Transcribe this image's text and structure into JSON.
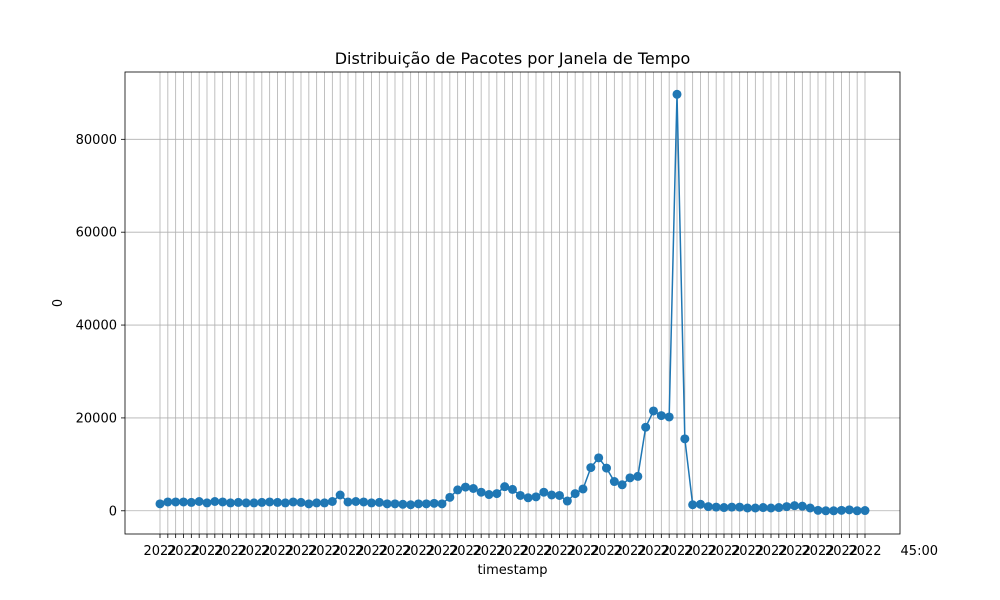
{
  "chart_data": {
    "type": "line",
    "title": "Distribuição de Pacotes por Janela de Tempo",
    "xlabel": "timestamp",
    "ylabel": "0",
    "ylim": [
      -5000,
      94500
    ],
    "yticks": [
      0,
      20000,
      40000,
      60000,
      80000
    ],
    "grid": true,
    "legend": "none",
    "x_tick_labels_overlap": true,
    "x_tick_visible_fragment": "2022",
    "x_tick_tail_fragment": "45:00",
    "series": [
      {
        "color": "#1f77b4",
        "values": [
          1500,
          1900,
          1900,
          1900,
          1800,
          2000,
          1700,
          2000,
          1900,
          1700,
          1800,
          1700,
          1700,
          1800,
          1900,
          1800,
          1700,
          1900,
          1800,
          1500,
          1700,
          1700,
          2000,
          3400,
          1900,
          2000,
          1900,
          1700,
          1800,
          1500,
          1500,
          1400,
          1300,
          1500,
          1500,
          1600,
          1500,
          2900,
          4500,
          5100,
          4800,
          4000,
          3500,
          3700,
          5200,
          4600,
          3300,
          2800,
          3000,
          4000,
          3400,
          3300,
          2100,
          3700,
          4700,
          9300,
          11400,
          9200,
          6300,
          5600,
          7100,
          7400,
          18000,
          21500,
          20500,
          20200,
          89700,
          15500,
          1300,
          1400,
          900,
          800,
          700,
          800,
          800,
          600,
          600,
          700,
          600,
          700,
          900,
          1100,
          1000,
          600,
          100,
          0,
          0,
          100,
          200,
          0,
          50
        ]
      }
    ]
  }
}
